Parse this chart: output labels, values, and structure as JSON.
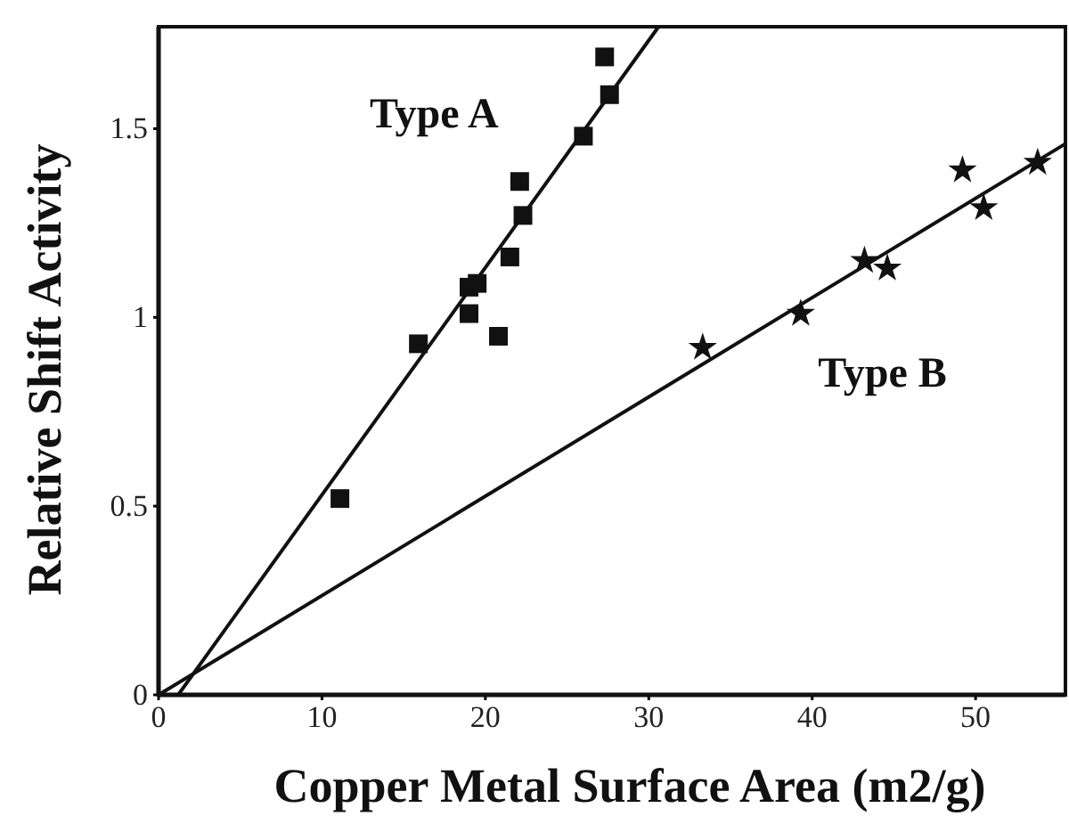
{
  "chart_data": {
    "type": "scatter",
    "xlabel": "Copper Metal Surface Area (m2/g)",
    "ylabel": "Relative Shift Activity",
    "xlim": [
      0,
      55.5
    ],
    "ylim": [
      0,
      1.77
    ],
    "xticks": [
      0,
      10,
      20,
      30,
      40,
      50
    ],
    "yticks": [
      0,
      0.5,
      1,
      1.5
    ],
    "grid": false,
    "series": [
      {
        "name": "Type A",
        "marker": "square",
        "color": "#111111",
        "x": [
          11.1,
          15.9,
          19.0,
          19.0,
          19.5,
          20.8,
          21.5,
          22.1,
          22.3,
          26.0,
          27.6,
          27.3
        ],
        "values": [
          0.52,
          0.93,
          1.01,
          1.08,
          1.09,
          0.95,
          1.16,
          1.36,
          1.27,
          1.48,
          1.59,
          1.69
        ]
      },
      {
        "name": "Type B",
        "marker": "star",
        "color": "#111111",
        "x": [
          33.3,
          39.3,
          43.2,
          44.6,
          49.2,
          50.5,
          53.8
        ],
        "values": [
          0.92,
          1.01,
          1.15,
          1.13,
          1.39,
          1.29,
          1.41
        ]
      },
      {
        "type": "line",
        "marker": "none",
        "line_style": "solid",
        "color": "#111111",
        "x": [
          1.2,
          30.6
        ],
        "values": [
          0,
          1.77
        ]
      },
      {
        "type": "line",
        "marker": "none",
        "line_style": "solid",
        "color": "#111111",
        "x": [
          0,
          55.5
        ],
        "values": [
          0,
          1.46
        ]
      }
    ]
  }
}
